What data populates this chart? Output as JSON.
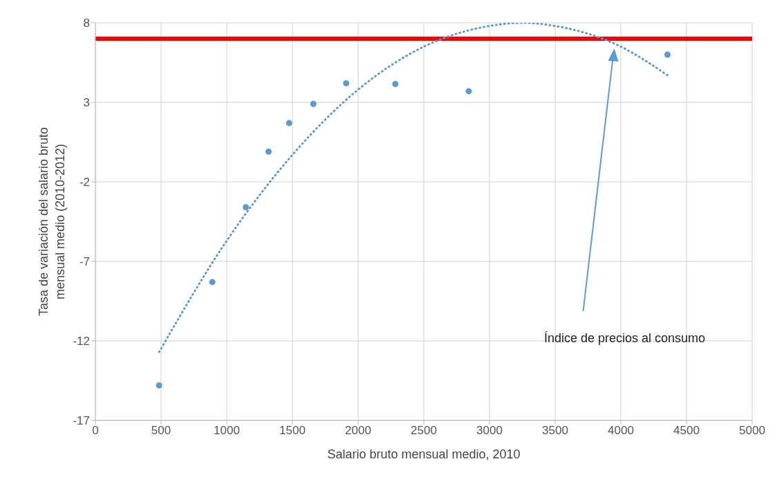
{
  "chart_data": {
    "type": "scatter",
    "xlabel": "Salario bruto mensual medio, 2010",
    "ylabel": "Tasa de variación del salario bruto mensual medio (2010-2012)",
    "xlim": [
      0,
      5000
    ],
    "xticks": [
      0,
      500,
      1000,
      1500,
      2000,
      2500,
      3000,
      3500,
      4000,
      4500,
      5000
    ],
    "ylim": [
      -17,
      8
    ],
    "yticks": [
      -17,
      -12,
      -7,
      -2,
      3,
      8
    ],
    "grid": true,
    "marker": "circle",
    "series": [
      {
        "color": "#5b9bd5",
        "x": [
          485,
          890,
          1145,
          1318,
          1475,
          1659,
          1909,
          2283,
          2842,
          4355
        ],
        "values": [
          -14.8,
          -8.3,
          -3.6,
          -0.1,
          1.7,
          2.9,
          4.2,
          4.15,
          3.7,
          6
        ]
      },
      {
        "type": "line",
        "color": "#5b9bd5",
        "line_style": "dotted",
        "marker": "none",
        "x": [
          485,
          1000,
          1500,
          2000,
          2500,
          3000,
          3250,
          3500,
          4000,
          4355
        ],
        "values": [
          -12.7,
          -5.7,
          -0.3,
          3.8,
          6.5,
          7.8,
          8,
          7.8,
          6.5,
          4.7
        ]
      }
    ],
    "ref_lines": [
      {
        "axis": "y",
        "value": 7,
        "color": "#ff0000"
      }
    ],
    "annotations": [
      "Índice de precios al consumo"
    ]
  }
}
